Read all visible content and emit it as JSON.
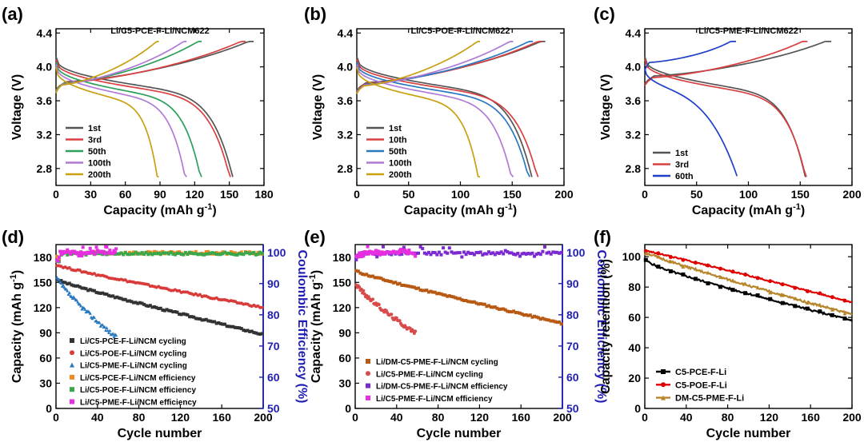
{
  "chart_data": [
    {
      "id": "a",
      "type": "line",
      "panel_label": "(a)",
      "title": "Li/C5-PCE-F-Li/NCM622",
      "xlabel": "Capacity (mAh g",
      "xlabel_sup": "-1",
      "xlabel_end": ")",
      "ylabel": "Voltage (V)",
      "xlim": [
        0,
        180
      ],
      "ylim": [
        2.6,
        4.45
      ],
      "xticks": [
        0,
        30,
        60,
        90,
        120,
        150,
        180
      ],
      "yticks": [
        2.8,
        3.2,
        3.6,
        4.0,
        4.4
      ],
      "xtick_labels": [
        "0",
        "30",
        "60",
        "90",
        "120",
        "150",
        "180"
      ],
      "ytick_labels": [
        "2.8",
        "3.2",
        "3.6",
        "4.0",
        "4.4"
      ],
      "series": [
        {
          "name": "1st",
          "color": "#555555",
          "charge_end": 171,
          "discharge_end": 153,
          "start_v": 3.75
        },
        {
          "name": "3rd",
          "color": "#d94040",
          "charge_end": 164,
          "discharge_end": 151,
          "start_v": 3.74
        },
        {
          "name": "50th",
          "color": "#2ca05a",
          "charge_end": 126,
          "discharge_end": 126,
          "start_v": 3.73
        },
        {
          "name": "100th",
          "color": "#b07ad6",
          "charge_end": 113,
          "discharge_end": 113,
          "start_v": 3.72
        },
        {
          "name": "200th",
          "color": "#c9a010",
          "charge_end": 89,
          "discharge_end": 89,
          "start_v": 3.71
        }
      ]
    },
    {
      "id": "b",
      "type": "line",
      "panel_label": "(b)",
      "title": "Li/C5-POE-F-Li/NCM622",
      "xlabel": "Capacity (mAh g",
      "xlabel_sup": "-1",
      "xlabel_end": ")",
      "ylabel": "Voltage (V)",
      "xlim": [
        0,
        200
      ],
      "ylim": [
        2.6,
        4.45
      ],
      "xticks": [
        0,
        50,
        100,
        150,
        200
      ],
      "yticks": [
        2.8,
        3.2,
        3.6,
        4.0,
        4.4
      ],
      "xtick_labels": [
        "0",
        "50",
        "100",
        "150",
        "200"
      ],
      "ytick_labels": [
        "2.8",
        "3.2",
        "3.6",
        "4.0",
        "4.4"
      ],
      "series": [
        {
          "name": "1st",
          "color": "#555555",
          "charge_end": 182,
          "discharge_end": 169,
          "start_v": 3.74
        },
        {
          "name": "10th",
          "color": "#d94040",
          "charge_end": 179,
          "discharge_end": 175,
          "start_v": 3.73
        },
        {
          "name": "50th",
          "color": "#2a78c0",
          "charge_end": 170,
          "discharge_end": 167,
          "start_v": 3.72
        },
        {
          "name": "100th",
          "color": "#b07ad6",
          "charge_end": 151,
          "discharge_end": 151,
          "start_v": 3.71
        },
        {
          "name": "200th",
          "color": "#c9a010",
          "charge_end": 119,
          "discharge_end": 119,
          "start_v": 3.7
        }
      ]
    },
    {
      "id": "c",
      "type": "line",
      "panel_label": "(c)",
      "title": "Li/C5-PME-F-Li/NCM622",
      "xlabel": "Capacity (mAh g",
      "xlabel_sup": "-1",
      "xlabel_end": ")",
      "ylabel": "Voltage (V)",
      "xlim": [
        0,
        200
      ],
      "ylim": [
        2.6,
        4.45
      ],
      "xticks": [
        0,
        50,
        100,
        150,
        200
      ],
      "yticks": [
        2.8,
        3.2,
        3.6,
        4.0,
        4.4
      ],
      "xtick_labels": [
        "0",
        "50",
        "100",
        "150",
        "200"
      ],
      "ytick_labels": [
        "2.8",
        "3.2",
        "3.6",
        "4.0",
        "4.4"
      ],
      "series": [
        {
          "name": "1st",
          "color": "#555555",
          "charge_end": 180,
          "discharge_end": 155,
          "start_v": 3.82
        },
        {
          "name": "3rd",
          "color": "#d94040",
          "charge_end": 157,
          "discharge_end": 156,
          "start_v": 3.8
        },
        {
          "name": "60th",
          "color": "#1f3fc8",
          "charge_end": 88,
          "discharge_end": 89,
          "start_v": 3.98
        }
      ]
    },
    {
      "id": "d",
      "type": "scatter",
      "panel_label": "(d)",
      "xlabel": "Cycle number",
      "ylabel": "Capacity (mAh g",
      "ylabel_sup": "-1",
      "ylabel_end": ")",
      "y2label": "Coulombic Efficiency (%)",
      "xlim": [
        0,
        200
      ],
      "ylim": [
        0,
        195
      ],
      "y2lim": [
        50,
        102.5
      ],
      "xticks": [
        0,
        40,
        80,
        120,
        160,
        200
      ],
      "yticks": [
        0,
        30,
        60,
        90,
        120,
        150,
        180
      ],
      "y2ticks": [
        50,
        60,
        70,
        80,
        90,
        100
      ],
      "xtick_labels": [
        "0",
        "40",
        "80",
        "120",
        "160",
        "200"
      ],
      "ytick_labels": [
        "0",
        "30",
        "60",
        "90",
        "120",
        "150",
        "180"
      ],
      "y2tick_labels": [
        "50",
        "60",
        "70",
        "80",
        "90",
        "100"
      ],
      "series": [
        {
          "name": "Li/C5-PCE-F-Li/NCM cycling",
          "color": "#333333",
          "marker": "square",
          "axis": "left",
          "start": 155,
          "end": 88,
          "last_cycle": 200
        },
        {
          "name": "Li/C5-POE-F-Li/NCM cycling",
          "color": "#d93a3a",
          "marker": "circle",
          "axis": "left",
          "start": 172,
          "end": 120,
          "last_cycle": 200
        },
        {
          "name": "Li/C5-PME-F-Li/NCM cycling",
          "color": "#2a78c0",
          "marker": "triangle",
          "axis": "left",
          "start": 158,
          "end": 85,
          "last_cycle": 58
        },
        {
          "name": "Li/C5-PCE-F-Li/NCM efficiency",
          "color": "#f08a24",
          "marker": "square",
          "axis": "right",
          "level": 99.8,
          "last_cycle": 200
        },
        {
          "name": "Li/C5-POE-F-Li/NCM efficiency",
          "color": "#3aa84a",
          "marker": "square",
          "axis": "right",
          "level": 99.6,
          "last_cycle": 200
        },
        {
          "name": "Li/C5-PME-F-Li/NCM efficiency",
          "color": "#e62ee0",
          "marker": "square",
          "axis": "right",
          "level": 99.9,
          "last_cycle": 58
        }
      ]
    },
    {
      "id": "e",
      "type": "scatter",
      "panel_label": "(e)",
      "xlabel": "Cycle number",
      "ylabel": "Capacity (mAh g",
      "ylabel_sup": "-1",
      "ylabel_end": ")",
      "y2label": "Coulombic Efficiency (%)",
      "xlim": [
        0,
        200
      ],
      "ylim": [
        0,
        195
      ],
      "y2lim": [
        50,
        102.5
      ],
      "xticks": [
        0,
        40,
        80,
        120,
        160,
        200
      ],
      "yticks": [
        0,
        30,
        60,
        90,
        120,
        150,
        180
      ],
      "y2ticks": [
        50,
        60,
        70,
        80,
        90,
        100
      ],
      "xtick_labels": [
        "0",
        "40",
        "80",
        "120",
        "160",
        "200"
      ],
      "ytick_labels": [
        "0",
        "30",
        "60",
        "90",
        "120",
        "150",
        "180"
      ],
      "y2tick_labels": [
        "50",
        "60",
        "70",
        "80",
        "90",
        "100"
      ],
      "series": [
        {
          "name": "Li/DM-C5-PME-F-Li/NCM cycling",
          "color": "#b85a14",
          "marker": "square",
          "axis": "left",
          "start": 165,
          "end": 101,
          "last_cycle": 200
        },
        {
          "name": "Li/C5-PME-F-Li/NCM cycling",
          "color": "#d94a4a",
          "marker": "circle",
          "axis": "left",
          "start": 150,
          "end": 90,
          "last_cycle": 58
        },
        {
          "name": "Li/DM-C5-PME-F-Li/NCM efficiency",
          "color": "#7a2ad0",
          "marker": "square",
          "axis": "right",
          "level": 99.7,
          "last_cycle": 200
        },
        {
          "name": "Li/C5-PME-F-Li/NCM efficiency",
          "color": "#e62ee0",
          "marker": "square",
          "axis": "right",
          "level": 99.9,
          "last_cycle": 58
        }
      ]
    },
    {
      "id": "f",
      "type": "line",
      "panel_label": "(f)",
      "xlabel": "Cycle number",
      "ylabel": "Capacity retention (%)",
      "xlim": [
        0,
        200
      ],
      "ylim": [
        0,
        108
      ],
      "xticks": [
        0,
        40,
        80,
        120,
        160,
        200
      ],
      "yticks": [
        0,
        20,
        40,
        60,
        80,
        100
      ],
      "xtick_labels": [
        "0",
        "40",
        "80",
        "120",
        "160",
        "200"
      ],
      "ytick_labels": [
        "0",
        "20",
        "40",
        "60",
        "80",
        "100"
      ],
      "series": [
        {
          "name": "C5-PCE-F-Li",
          "color": "#000000",
          "marker": "square",
          "start": 100,
          "end": 58
        },
        {
          "name": "C5-POE-F-Li",
          "color": "#e00000",
          "marker": "circle",
          "start": 104,
          "end": 70
        },
        {
          "name": "DM-C5-PME-F-Li",
          "color": "#b8862a",
          "marker": "triangle",
          "start": 103,
          "end": 62
        }
      ]
    }
  ]
}
